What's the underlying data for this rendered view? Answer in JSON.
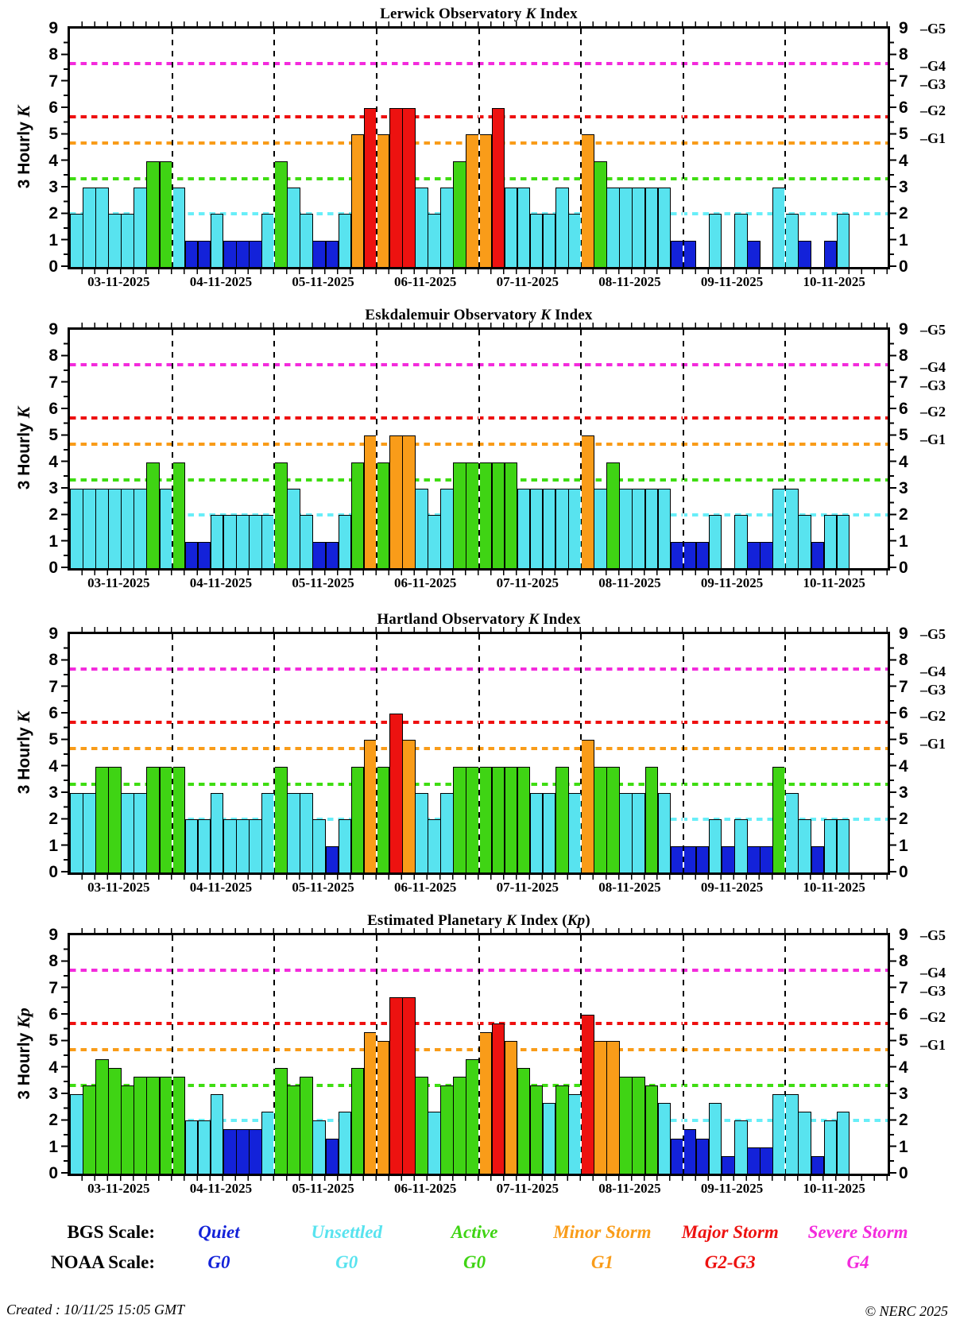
{
  "page": {
    "footer_created": "Created : 10/11/25 15:05 GMT",
    "footer_copyright": "© NERC 2025"
  },
  "dates": [
    "03-11-2025",
    "04-11-2025",
    "05-11-2025",
    "06-11-2025",
    "07-11-2025",
    "08-11-2025",
    "09-11-2025",
    "10-11-2025"
  ],
  "axis": {
    "ylim": [
      0,
      9
    ],
    "yticks": [
      0,
      1,
      2,
      3,
      4,
      5,
      6,
      7,
      8,
      9
    ],
    "g_labels": [
      {
        "text": "G5",
        "value": 9.0
      },
      {
        "text": "G4",
        "value": 7.6
      },
      {
        "text": "G3",
        "value": 6.9
      },
      {
        "text": "G2",
        "value": 5.9
      },
      {
        "text": "G1",
        "value": 4.85
      }
    ],
    "thresholds": [
      {
        "name": "severe-storm-line",
        "value": 7.67,
        "color": "#F32BDC"
      },
      {
        "name": "major-storm-line",
        "value": 5.67,
        "color": "#EE1010"
      },
      {
        "name": "minor-storm-line",
        "value": 4.67,
        "color": "#F99C19"
      },
      {
        "name": "active-line",
        "value": 3.33,
        "color": "#3FDD12"
      },
      {
        "name": "unsettled-line",
        "value": 2.0,
        "color": "#68EEF8"
      }
    ]
  },
  "bar_colors": {
    "quiet": "#1322D9",
    "unsettled": "#58E3EF",
    "active": "#3FD414",
    "minor_storm": "#F99C19",
    "major_storm": "#ED1210",
    "severe_storm": "#F32BDC"
  },
  "chart_data": [
    {
      "type": "bar",
      "title": "Lerwick Observatory K Index",
      "title_segments": [
        [
          "Lerwick Observatory ",
          0
        ],
        [
          "K",
          1
        ],
        [
          " Index",
          0
        ]
      ],
      "ylabel": "3 Hourly K",
      "ylabel_segments": [
        [
          "3 Hourly ",
          0
        ],
        [
          "K",
          1
        ]
      ],
      "dates": [
        "03-11-2025",
        "04-11-2025",
        "05-11-2025",
        "06-11-2025",
        "07-11-2025",
        "08-11-2025",
        "09-11-2025",
        "10-11-2025"
      ],
      "ylim": [
        0,
        9
      ],
      "values_by_day": [
        [
          2,
          3,
          3,
          2,
          2,
          3,
          4,
          4
        ],
        [
          3,
          1,
          1,
          2,
          1,
          1,
          1,
          2
        ],
        [
          4,
          3,
          2,
          1,
          1,
          2,
          5,
          6
        ],
        [
          5,
          6,
          6,
          3,
          2,
          3,
          4,
          5
        ],
        [
          5,
          6,
          3,
          3,
          2,
          2,
          3,
          2
        ],
        [
          5,
          4,
          3,
          3,
          3,
          3,
          3,
          1
        ],
        [
          1,
          0,
          2,
          0,
          2,
          1,
          0,
          3
        ],
        [
          2,
          1,
          0,
          1,
          2
        ]
      ]
    },
    {
      "type": "bar",
      "title": "Eskdalemuir Observatory K Index",
      "title_segments": [
        [
          "Eskdalemuir Observatory ",
          0
        ],
        [
          "K",
          1
        ],
        [
          " Index",
          0
        ]
      ],
      "ylabel": "3 Hourly K",
      "ylabel_segments": [
        [
          "3 Hourly ",
          0
        ],
        [
          "K",
          1
        ]
      ],
      "dates": [
        "03-11-2025",
        "04-11-2025",
        "05-11-2025",
        "06-11-2025",
        "07-11-2025",
        "08-11-2025",
        "09-11-2025",
        "10-11-2025"
      ],
      "ylim": [
        0,
        9
      ],
      "values_by_day": [
        [
          3,
          3,
          3,
          3,
          3,
          3,
          4,
          3
        ],
        [
          4,
          1,
          1,
          2,
          2,
          2,
          2,
          2
        ],
        [
          4,
          3,
          2,
          1,
          1,
          2,
          4,
          5
        ],
        [
          4,
          5,
          5,
          3,
          2,
          3,
          4,
          4
        ],
        [
          4,
          4,
          4,
          3,
          3,
          3,
          3,
          3
        ],
        [
          5,
          3,
          4,
          3,
          3,
          3,
          3,
          1
        ],
        [
          1,
          1,
          2,
          0,
          2,
          1,
          1,
          3
        ],
        [
          3,
          2,
          1,
          2,
          2
        ]
      ]
    },
    {
      "type": "bar",
      "title": "Hartland Observatory K Index",
      "title_segments": [
        [
          "Hartland Observatory ",
          0
        ],
        [
          "K",
          1
        ],
        [
          " Index",
          0
        ]
      ],
      "ylabel": "3 Hourly K",
      "ylabel_segments": [
        [
          "3 Hourly ",
          0
        ],
        [
          "K",
          1
        ]
      ],
      "dates": [
        "03-11-2025",
        "04-11-2025",
        "05-11-2025",
        "06-11-2025",
        "07-11-2025",
        "08-11-2025",
        "09-11-2025",
        "10-11-2025"
      ],
      "ylim": [
        0,
        9
      ],
      "values_by_day": [
        [
          3,
          3,
          4,
          4,
          3,
          3,
          4,
          4
        ],
        [
          4,
          2,
          2,
          3,
          2,
          2,
          2,
          3
        ],
        [
          4,
          3,
          3,
          2,
          1,
          2,
          4,
          5
        ],
        [
          4,
          6,
          5,
          3,
          2,
          3,
          4,
          4
        ],
        [
          4,
          4,
          4,
          4,
          3,
          3,
          4,
          3
        ],
        [
          5,
          4,
          4,
          3,
          3,
          4,
          3,
          1
        ],
        [
          1,
          1,
          2,
          1,
          2,
          1,
          1,
          4
        ],
        [
          3,
          2,
          1,
          2,
          2
        ]
      ]
    },
    {
      "type": "bar",
      "title": "Estimated Planetary K Index (Kp)",
      "title_segments": [
        [
          "Estimated Planetary ",
          0
        ],
        [
          "K",
          1
        ],
        [
          " Index (",
          0
        ],
        [
          "Kp",
          1
        ],
        [
          ")",
          0
        ]
      ],
      "ylabel": "3 Hourly Kp",
      "ylabel_segments": [
        [
          "3 Hourly ",
          0
        ],
        [
          "Kp",
          1
        ]
      ],
      "dates": [
        "03-11-2025",
        "04-11-2025",
        "05-11-2025",
        "06-11-2025",
        "07-11-2025",
        "08-11-2025",
        "09-11-2025",
        "10-11-2025"
      ],
      "ylim": [
        0,
        9
      ],
      "values_by_day": [
        [
          3.0,
          3.33,
          4.33,
          4.0,
          3.33,
          3.67,
          3.67,
          3.67
        ],
        [
          3.67,
          2.0,
          2.0,
          3.0,
          1.67,
          1.67,
          1.67,
          2.33
        ],
        [
          4.0,
          3.33,
          3.67,
          2.0,
          1.33,
          2.33,
          4.0,
          5.33
        ],
        [
          5.0,
          6.67,
          6.67,
          3.67,
          2.33,
          3.33,
          3.67,
          4.33
        ],
        [
          5.33,
          5.67,
          5.0,
          4.0,
          3.33,
          2.67,
          3.33,
          3.0
        ],
        [
          6.0,
          5.0,
          5.0,
          3.67,
          3.67,
          3.33,
          2.67,
          1.33
        ],
        [
          1.67,
          1.33,
          2.67,
          0.67,
          2.0,
          1.0,
          1.0,
          3.0
        ],
        [
          3.0,
          2.33,
          0.67,
          2.0,
          2.33
        ]
      ]
    }
  ],
  "legend": {
    "bgs_label": "BGS Scale:",
    "noaa_label": "NOAA Scale:",
    "items": [
      {
        "bgs": "Quiet",
        "noaa": "G0",
        "color": "#1322D9"
      },
      {
        "bgs": "Unsettled",
        "noaa": "G0",
        "color": "#58E3EF"
      },
      {
        "bgs": "Active",
        "noaa": "G0",
        "color": "#3FD414"
      },
      {
        "bgs": "Minor Storm",
        "noaa": "G1",
        "color": "#F99C19"
      },
      {
        "bgs": "Major Storm",
        "noaa": "G2-G3",
        "color": "#ED1210"
      },
      {
        "bgs": "Severe Storm",
        "noaa": "G4",
        "color": "#F32BDC"
      }
    ]
  }
}
